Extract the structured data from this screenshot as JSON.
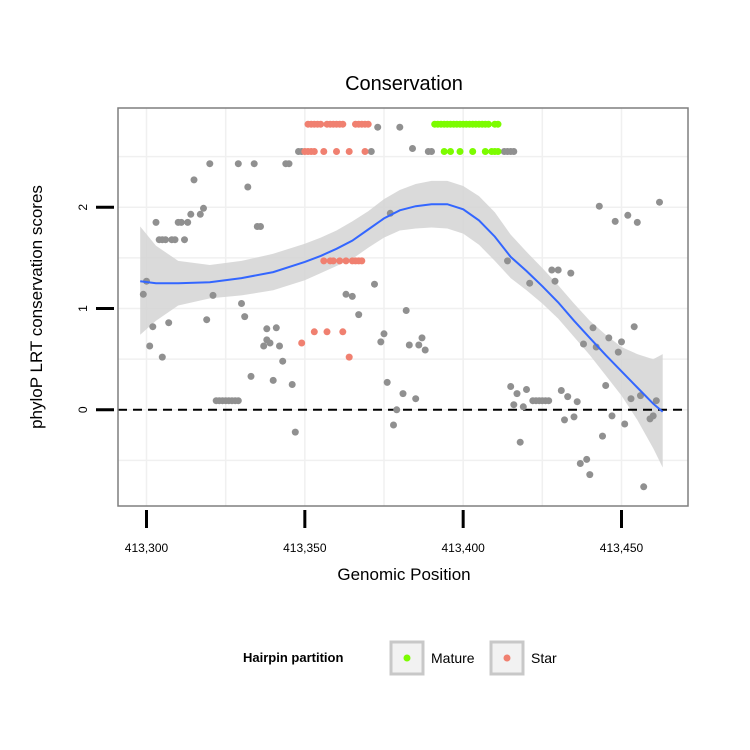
{
  "chart_data": {
    "type": "scatter",
    "title": "Conservation",
    "xlabel": "Genomic Position",
    "ylabel": "phyloP LRT conservation scores",
    "xlim": [
      413291,
      413471
    ],
    "ylim": [
      -0.95,
      2.98
    ],
    "x_ticks": [
      413300,
      413350,
      413400,
      413450
    ],
    "x_tick_labels": [
      "413,300",
      "413,350",
      "413,400",
      "413,450"
    ],
    "y_ticks": [
      0,
      1,
      2
    ],
    "y_tick_labels": [
      "0",
      "1",
      "2"
    ],
    "reference_line": {
      "y": 0,
      "style": "dashed"
    },
    "grid": true,
    "legend": {
      "title": "Hairpin partition",
      "position": "bottom",
      "entries": [
        {
          "label": "Mature",
          "color": "#7cfc00"
        },
        {
          "label": "Star",
          "color": "#f08070"
        }
      ]
    },
    "colors": {
      "none": "#909090",
      "Mature": "#7cfc00",
      "Star": "#f08070",
      "smooth": "#3366ff",
      "ribbon": "#d3d3d3"
    },
    "series": [
      {
        "name": "",
        "color_key": "none",
        "points": [
          [
            413299,
            1.14
          ],
          [
            413300,
            1.27
          ],
          [
            413301,
            0.63
          ],
          [
            413302,
            0.82
          ],
          [
            413303,
            1.85
          ],
          [
            413304,
            1.68
          ],
          [
            413305,
            1.68
          ],
          [
            413305,
            0.52
          ],
          [
            413306,
            1.68
          ],
          [
            413307,
            0.86
          ],
          [
            413308,
            1.68
          ],
          [
            413309,
            1.68
          ],
          [
            413310,
            1.85
          ],
          [
            413311,
            1.85
          ],
          [
            413312,
            1.68
          ],
          [
            413313,
            1.85
          ],
          [
            413314,
            1.93
          ],
          [
            413315,
            2.27
          ],
          [
            413317,
            1.93
          ],
          [
            413318,
            1.99
          ],
          [
            413319,
            0.89
          ],
          [
            413320,
            2.43
          ],
          [
            413321,
            1.13
          ],
          [
            413322,
            0.09
          ],
          [
            413323,
            0.09
          ],
          [
            413324,
            0.09
          ],
          [
            413325,
            0.09
          ],
          [
            413326,
            0.09
          ],
          [
            413327,
            0.09
          ],
          [
            413328,
            0.09
          ],
          [
            413329,
            0.09
          ],
          [
            413329,
            2.43
          ],
          [
            413330,
            1.05
          ],
          [
            413331,
            0.92
          ],
          [
            413332,
            2.2
          ],
          [
            413333,
            0.33
          ],
          [
            413334,
            2.43
          ],
          [
            413335,
            1.81
          ],
          [
            413336,
            1.81
          ],
          [
            413337,
            0.63
          ],
          [
            413338,
            0.8
          ],
          [
            413338,
            0.69
          ],
          [
            413339,
            0.66
          ],
          [
            413340,
            0.29
          ],
          [
            413341,
            0.81
          ],
          [
            413342,
            0.63
          ],
          [
            413343,
            0.48
          ],
          [
            413344,
            2.43
          ],
          [
            413345,
            2.43
          ],
          [
            413346,
            0.25
          ],
          [
            413347,
            -0.22
          ],
          [
            413348,
            2.55
          ],
          [
            413349,
            2.55
          ],
          [
            413363,
            1.14
          ],
          [
            413365,
            1.12
          ],
          [
            413367,
            0.94
          ],
          [
            413371,
            2.55
          ],
          [
            413372,
            1.24
          ],
          [
            413373,
            2.79
          ],
          [
            413374,
            0.67
          ],
          [
            413375,
            0.75
          ],
          [
            413376,
            0.27
          ],
          [
            413377,
            1.94
          ],
          [
            413378,
            -0.15
          ],
          [
            413379,
            0.0
          ],
          [
            413380,
            2.79
          ],
          [
            413381,
            0.16
          ],
          [
            413382,
            0.98
          ],
          [
            413383,
            0.64
          ],
          [
            413384,
            2.58
          ],
          [
            413385,
            0.11
          ],
          [
            413386,
            0.64
          ],
          [
            413387,
            0.71
          ],
          [
            413388,
            0.59
          ],
          [
            413389,
            2.55
          ],
          [
            413390,
            2.55
          ],
          [
            413413,
            2.55
          ],
          [
            413414,
            2.55
          ],
          [
            413415,
            2.55
          ],
          [
            413416,
            2.55
          ],
          [
            413414,
            1.47
          ],
          [
            413415,
            0.23
          ],
          [
            413416,
            0.05
          ],
          [
            413417,
            0.16
          ],
          [
            413418,
            -0.32
          ],
          [
            413419,
            0.03
          ],
          [
            413420,
            0.2
          ],
          [
            413421,
            1.25
          ],
          [
            413422,
            0.09
          ],
          [
            413423,
            0.09
          ],
          [
            413424,
            0.09
          ],
          [
            413425,
            0.09
          ],
          [
            413426,
            0.09
          ],
          [
            413427,
            0.09
          ],
          [
            413428,
            1.38
          ],
          [
            413429,
            1.27
          ],
          [
            413430,
            1.38
          ],
          [
            413431,
            0.19
          ],
          [
            413432,
            -0.1
          ],
          [
            413433,
            0.13
          ],
          [
            413434,
            1.35
          ],
          [
            413435,
            -0.07
          ],
          [
            413436,
            0.08
          ],
          [
            413437,
            -0.53
          ],
          [
            413438,
            0.65
          ],
          [
            413439,
            -0.49
          ],
          [
            413440,
            -0.64
          ],
          [
            413441,
            0.81
          ],
          [
            413442,
            0.62
          ],
          [
            413443,
            2.01
          ],
          [
            413444,
            -0.26
          ],
          [
            413445,
            0.24
          ],
          [
            413446,
            0.71
          ],
          [
            413447,
            -0.06
          ],
          [
            413448,
            1.86
          ],
          [
            413449,
            0.57
          ],
          [
            413450,
            0.67
          ],
          [
            413451,
            -0.14
          ],
          [
            413452,
            1.92
          ],
          [
            413453,
            0.11
          ],
          [
            413454,
            0.82
          ],
          [
            413455,
            1.85
          ],
          [
            413456,
            0.14
          ],
          [
            413457,
            -0.76
          ],
          [
            413459,
            -0.09
          ],
          [
            413460,
            -0.06
          ],
          [
            413461,
            0.09
          ],
          [
            413462,
            2.05
          ]
        ]
      },
      {
        "name": "Mature",
        "color_key": "Mature",
        "points": [
          [
            413391,
            2.82
          ],
          [
            413392,
            2.82
          ],
          [
            413393,
            2.82
          ],
          [
            413394,
            2.82
          ],
          [
            413394,
            2.55
          ],
          [
            413395,
            2.82
          ],
          [
            413396,
            2.82
          ],
          [
            413396,
            2.55
          ],
          [
            413397,
            2.82
          ],
          [
            413398,
            2.82
          ],
          [
            413399,
            2.82
          ],
          [
            413399,
            2.55
          ],
          [
            413400,
            2.82
          ],
          [
            413401,
            2.82
          ],
          [
            413402,
            2.82
          ],
          [
            413403,
            2.82
          ],
          [
            413403,
            2.55
          ],
          [
            413404,
            2.82
          ],
          [
            413405,
            2.82
          ],
          [
            413406,
            2.82
          ],
          [
            413407,
            2.82
          ],
          [
            413407,
            2.55
          ],
          [
            413408,
            2.82
          ],
          [
            413409,
            2.55
          ],
          [
            413410,
            2.82
          ],
          [
            413410,
            2.55
          ],
          [
            413411,
            2.82
          ],
          [
            413411,
            2.55
          ]
        ]
      },
      {
        "name": "Star",
        "color_key": "Star",
        "points": [
          [
            413351,
            2.82
          ],
          [
            413352,
            2.82
          ],
          [
            413353,
            2.82
          ],
          [
            413354,
            2.82
          ],
          [
            413355,
            2.82
          ],
          [
            413357,
            2.82
          ],
          [
            413358,
            2.82
          ],
          [
            413359,
            2.82
          ],
          [
            413360,
            2.82
          ],
          [
            413361,
            2.82
          ],
          [
            413362,
            2.82
          ],
          [
            413366,
            2.82
          ],
          [
            413367,
            2.82
          ],
          [
            413368,
            2.82
          ],
          [
            413369,
            2.82
          ],
          [
            413370,
            2.82
          ],
          [
            413350,
            2.55
          ],
          [
            413351,
            2.55
          ],
          [
            413352,
            2.55
          ],
          [
            413353,
            2.55
          ],
          [
            413356,
            2.55
          ],
          [
            413360,
            2.55
          ],
          [
            413364,
            2.55
          ],
          [
            413369,
            2.55
          ],
          [
            413349,
            0.66
          ],
          [
            413353,
            0.77
          ],
          [
            413356,
            1.47
          ],
          [
            413357,
            0.77
          ],
          [
            413358,
            1.47
          ],
          [
            413359,
            1.47
          ],
          [
            413361,
            1.47
          ],
          [
            413362,
            0.77
          ],
          [
            413363,
            1.47
          ],
          [
            413364,
            0.52
          ],
          [
            413365,
            1.47
          ],
          [
            413366,
            1.47
          ],
          [
            413367,
            1.47
          ],
          [
            413368,
            1.47
          ]
        ]
      }
    ],
    "smooth": {
      "x": [
        413298,
        413303,
        413310,
        413320,
        413330,
        413340,
        413350,
        413355,
        413360,
        413365,
        413370,
        413375,
        413380,
        413385,
        413390,
        413395,
        413400,
        413405,
        413410,
        413415,
        413420,
        413425,
        413430,
        413435,
        413440,
        413445,
        413450,
        413455,
        413460,
        413463
      ],
      "fit": [
        1.27,
        1.25,
        1.25,
        1.26,
        1.3,
        1.36,
        1.46,
        1.52,
        1.59,
        1.67,
        1.78,
        1.89,
        1.97,
        2.01,
        2.03,
        2.03,
        1.98,
        1.87,
        1.71,
        1.51,
        1.37,
        1.22,
        1.06,
        0.88,
        0.71,
        0.54,
        0.38,
        0.22,
        0.06,
        -0.02
      ],
      "lower": [
        0.74,
        0.88,
        1.03,
        1.1,
        1.13,
        1.18,
        1.28,
        1.35,
        1.42,
        1.49,
        1.6,
        1.7,
        1.77,
        1.79,
        1.8,
        1.79,
        1.74,
        1.63,
        1.47,
        1.3,
        1.18,
        1.05,
        0.9,
        0.72,
        0.54,
        0.34,
        0.14,
        -0.1,
        -0.38,
        -0.57
      ],
      "upper": [
        1.81,
        1.62,
        1.47,
        1.43,
        1.47,
        1.54,
        1.64,
        1.7,
        1.77,
        1.86,
        1.96,
        2.08,
        2.17,
        2.23,
        2.26,
        2.26,
        2.21,
        2.11,
        1.95,
        1.73,
        1.56,
        1.4,
        1.23,
        1.05,
        0.88,
        0.74,
        0.62,
        0.55,
        0.5,
        0.55
      ]
    }
  }
}
